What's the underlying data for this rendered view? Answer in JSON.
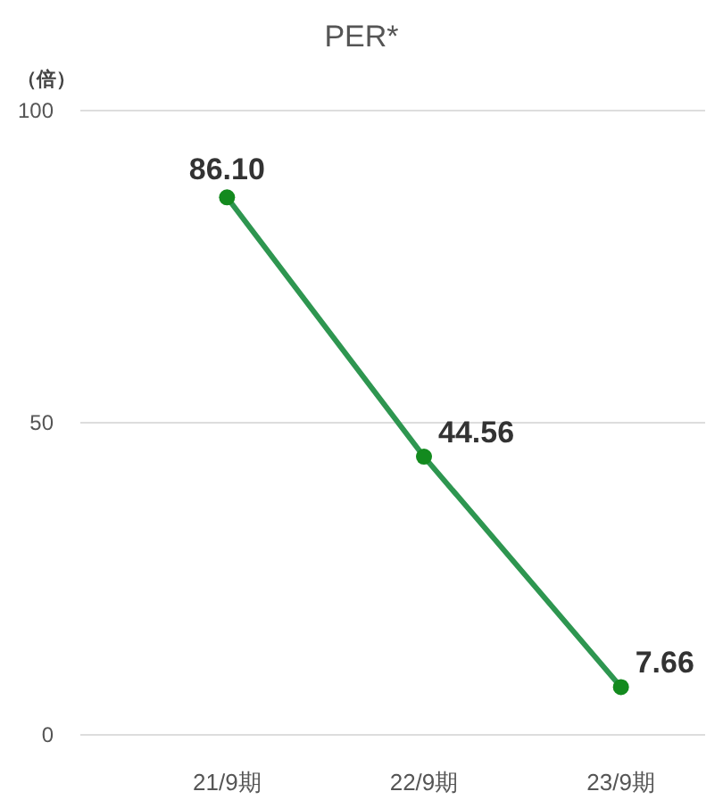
{
  "chart_data": {
    "type": "line",
    "title": "PER*",
    "ylabel": "（倍）",
    "categories": [
      "21/9期",
      "22/9期",
      "23/9期"
    ],
    "series": [
      {
        "color": "#2e9650",
        "values": [
          86.1,
          44.56,
          7.66
        ],
        "value_labels": [
          "86.10",
          "44.56",
          "7.66"
        ]
      }
    ],
    "ylim": [
      0,
      100
    ],
    "yticks": [
      0,
      50,
      100
    ],
    "grid": "y",
    "marker": "circle",
    "line_style": "solid"
  }
}
